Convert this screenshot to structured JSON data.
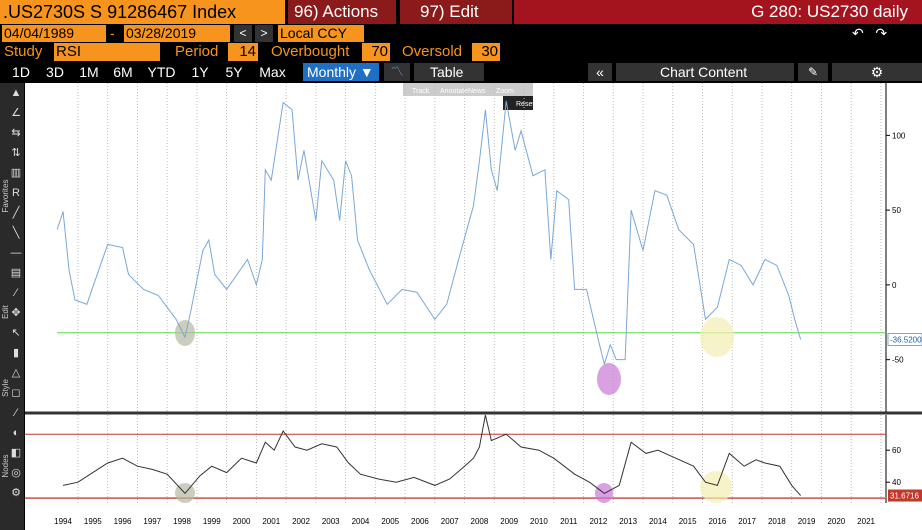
{
  "header": {
    "security": ".US2730S S 91286467 Index",
    "actions": "96) Actions",
    "edit": "97) Edit",
    "window": "G 280: US2730 daily"
  },
  "range": {
    "start": "04/04/1989",
    "separator": "-",
    "end": "03/28/2019",
    "currency": "Local CCY"
  },
  "study": {
    "label": "Study",
    "name": "RSI",
    "period_label": "Period",
    "period": 14,
    "overbought_label": "Overbought",
    "overbought": 70,
    "oversold_label": "Oversold",
    "oversold": 30
  },
  "toolbar": {
    "periods": [
      "1D",
      "3D",
      "1M",
      "6M",
      "YTD",
      "1Y",
      "5Y",
      "Max"
    ],
    "frequency": "Monthly ▼",
    "table": "Table",
    "chart_content": "Chart Content"
  },
  "chart_tools": [
    "Track",
    "Annotate",
    "News",
    "Zoom"
  ],
  "reset": "Reset",
  "side_labels": [
    "Favorites",
    "Edit",
    "Style",
    "Nodes"
  ],
  "chart_data": [
    {
      "type": "line",
      "x": [
        1993.8,
        1994.0,
        1994.2,
        1994.4,
        1994.8,
        1995.2,
        1995.5,
        1996.0,
        1996.2,
        1996.7,
        1997.2,
        1997.8,
        1998.1,
        1998.3,
        1998.7,
        1998.9,
        1999.1,
        1999.5,
        2000.2,
        2000.5,
        2000.7,
        2000.8,
        2001.0,
        2001.4,
        2001.7,
        2001.9,
        2002.1,
        2002.5,
        2002.7,
        2003.1,
        2003.3,
        2003.5,
        2003.7,
        2003.9,
        2004.3,
        2004.9,
        2005.4,
        2005.9,
        2006.5,
        2006.9,
        2007.3,
        2007.8,
        2008.0,
        2008.2,
        2008.4,
        2008.6,
        2008.9,
        2009.2,
        2009.4,
        2009.8,
        2010.2,
        2010.4,
        2010.6,
        2011.0,
        2011.2,
        2011.6,
        2012.0,
        2012.2,
        2012.4,
        2012.6,
        2012.9,
        2013.1,
        2013.5,
        2013.9,
        2014.3,
        2014.7,
        2015.2,
        2015.6,
        2016.0,
        2016.4,
        2016.8,
        2017.2,
        2017.6,
        2018.0,
        2018.4,
        2018.6,
        2018.8
      ],
      "series": [
        {
          "color": "#7aa7d6",
          "values": [
            37,
            49,
            10,
            -10,
            -13,
            10,
            27,
            25,
            7,
            -3,
            -7,
            -23,
            -35,
            -17,
            23,
            30,
            7,
            -3,
            17,
            0,
            17,
            77,
            70,
            122,
            117,
            70,
            90,
            43,
            83,
            70,
            43,
            83,
            73,
            30,
            10,
            -13,
            -3,
            -5,
            -23,
            -13,
            17,
            53,
            83,
            117,
            77,
            63,
            123,
            90,
            103,
            73,
            77,
            17,
            63,
            57,
            -3,
            -3,
            -37,
            -53,
            -40,
            -50,
            -50,
            50,
            23,
            63,
            60,
            37,
            27,
            -23,
            -15,
            17,
            13,
            0,
            17,
            13,
            -7,
            -23,
            -36.52
          ]
        }
      ],
      "last_value": {
        "value": -36.52,
        "label": "-36.5200"
      },
      "reference_line": -32,
      "xlim": [
        1992.72,
        2021.67
      ],
      "xticks": [
        1994,
        1995,
        1996,
        1997,
        1998,
        1999,
        2000,
        2001,
        2002,
        2003,
        2004,
        2005,
        2006,
        2007,
        2008,
        2009,
        2010,
        2011,
        2012,
        2013,
        2014,
        2015,
        2016,
        2017,
        2018,
        2019,
        2020,
        2021
      ],
      "ylim": [
        -85,
        135
      ],
      "yticks": [
        -50,
        0,
        50,
        100
      ]
    },
    {
      "type": "line",
      "x": [
        1994.0,
        1994.5,
        1995.0,
        1995.5,
        1996.0,
        1996.5,
        1997.0,
        1997.5,
        1998.1,
        1998.6,
        1999.0,
        1999.5,
        2000.0,
        2000.5,
        2000.8,
        2001.1,
        2001.4,
        2001.8,
        2002.2,
        2002.7,
        2003.2,
        2003.6,
        2004.0,
        2004.6,
        2005.2,
        2005.8,
        2006.5,
        2007.0,
        2007.5,
        2007.8,
        2008.0,
        2008.2,
        2008.4,
        2008.9,
        2009.4,
        2010.0,
        2010.5,
        2011.2,
        2011.7,
        2012.2,
        2012.7,
        2013.1,
        2013.6,
        2014.0,
        2014.6,
        2015.2,
        2015.6,
        2016.0,
        2016.4,
        2016.9,
        2017.3,
        2017.6,
        2018.1,
        2018.5,
        2018.8
      ],
      "series": [
        {
          "color": "#333333",
          "values": [
            38,
            40,
            46,
            52,
            55,
            50,
            48,
            45,
            33,
            44,
            50,
            46,
            55,
            52,
            65,
            60,
            72,
            62,
            60,
            64,
            62,
            52,
            45,
            42,
            40,
            43,
            38,
            42,
            50,
            55,
            62,
            82,
            66,
            70,
            62,
            60,
            55,
            45,
            40,
            33,
            38,
            65,
            58,
            60,
            55,
            50,
            40,
            38,
            58,
            50,
            54,
            52,
            50,
            38,
            31.67
          ]
        }
      ],
      "last_value": {
        "value": 31.67,
        "label": "31.6716"
      },
      "xlim": [
        1992.72,
        2021.67
      ],
      "ylim": [
        27,
        82
      ],
      "yticks": [
        40,
        60
      ]
    }
  ]
}
